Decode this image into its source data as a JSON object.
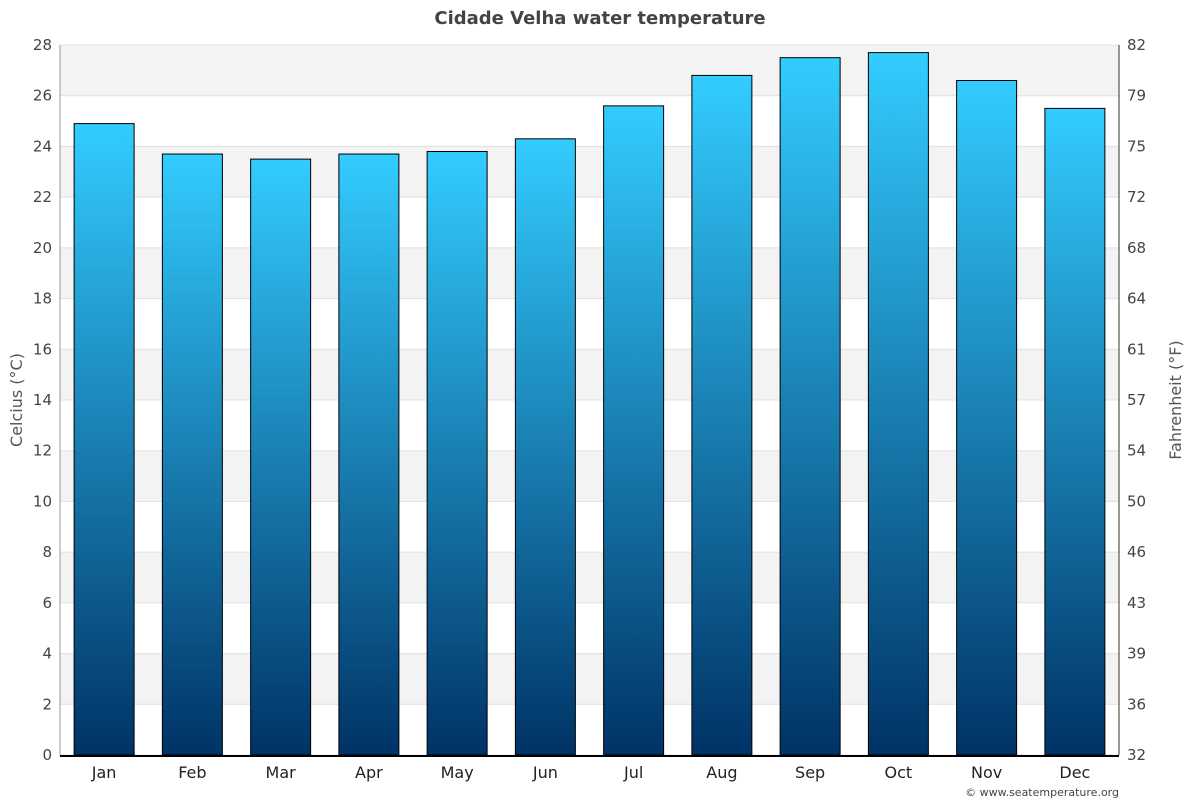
{
  "chart_data": {
    "type": "bar",
    "title": "Cidade Velha water temperature",
    "ylabel": "Celcius (°C)",
    "ylabel_right": "Fahrenheit (°F)",
    "categories": [
      "Jan",
      "Feb",
      "Mar",
      "Apr",
      "May",
      "Jun",
      "Jul",
      "Aug",
      "Sep",
      "Oct",
      "Nov",
      "Dec"
    ],
    "values": [
      24.9,
      23.7,
      23.5,
      23.7,
      23.8,
      24.3,
      25.6,
      26.8,
      27.5,
      27.7,
      26.6,
      25.5
    ],
    "ylim": [
      0,
      28
    ],
    "yticks": [
      0,
      2,
      4,
      6,
      8,
      10,
      12,
      14,
      16,
      18,
      20,
      22,
      24,
      26,
      28
    ],
    "yticks_right": [
      "32",
      "36",
      "39",
      "43",
      "46",
      "50",
      "54",
      "57",
      "61",
      "64",
      "68",
      "72",
      "75",
      "79",
      "82"
    ],
    "grid": true,
    "bar_gradient": [
      "#33ccff",
      "#003366"
    ],
    "credit": "© www.seatemperature.org"
  }
}
